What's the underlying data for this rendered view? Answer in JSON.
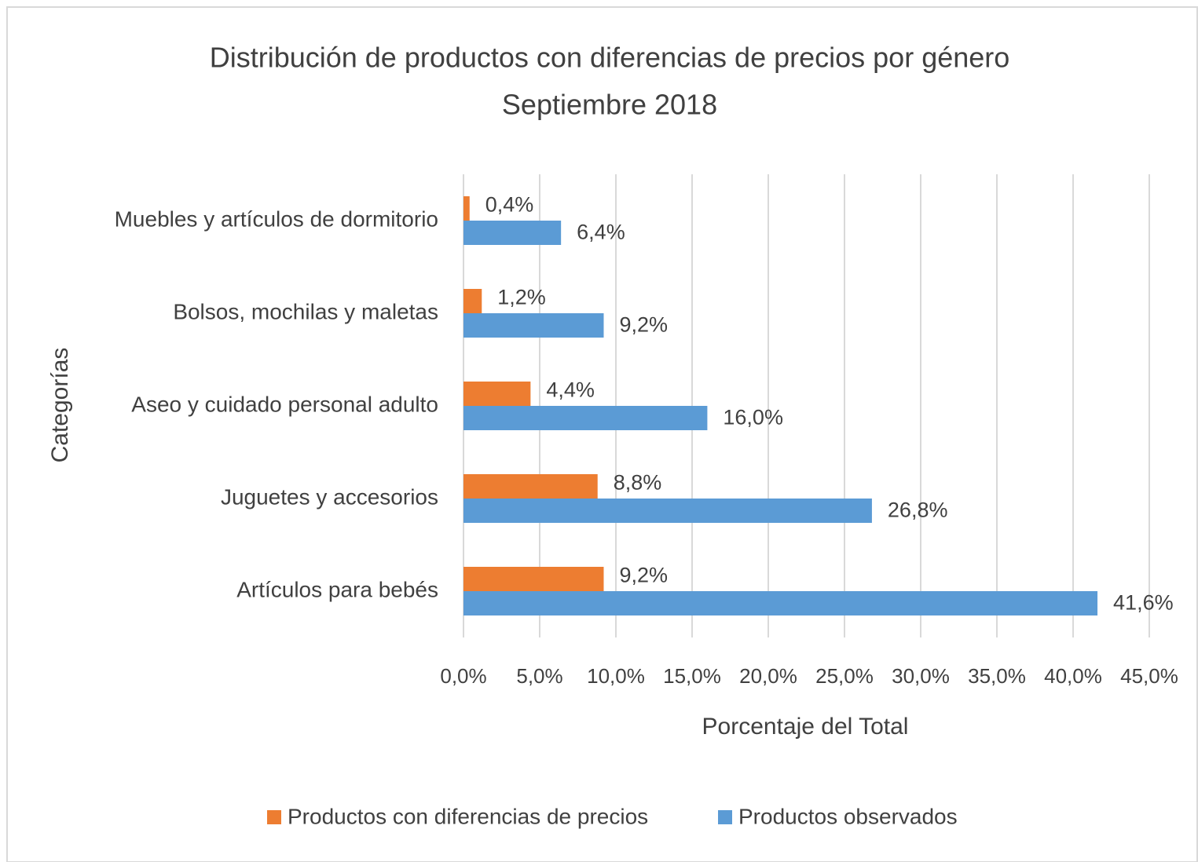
{
  "chart_data": {
    "type": "barh",
    "title": "Distribución de productos con diferencias de precios por género",
    "subtitle": "Septiembre 2018",
    "x_label": "Porcentaje del Total",
    "y_label": "Categorías",
    "categories": [
      "Muebles y artículos de dormitorio",
      "Bolsos, mochilas y maletas",
      "Aseo y cuidado personal adulto",
      "Juguetes y accesorios",
      "Artículos para bebés"
    ],
    "series": [
      {
        "name": "Productos con diferencias de precios",
        "color": "#ed7d31",
        "values": [
          0.4,
          1.2,
          4.4,
          8.8,
          9.2
        ],
        "value_labels": [
          "0,4%",
          "1,2%",
          "4,4%",
          "8,8%",
          "9,2%"
        ]
      },
      {
        "name": "Productos observados",
        "color": "#5b9bd5",
        "values": [
          6.4,
          9.2,
          16.0,
          26.8,
          41.6
        ],
        "value_labels": [
          "6,4%",
          "9,2%",
          "16,0%",
          "26,8%",
          "41,6%"
        ]
      }
    ],
    "xlim": [
      0,
      45
    ],
    "xticks": [
      {
        "value": 0,
        "label": "0,0%"
      },
      {
        "value": 5,
        "label": "5,0%"
      },
      {
        "value": 10,
        "label": "10,0%"
      },
      {
        "value": 15,
        "label": "15,0%"
      },
      {
        "value": 20,
        "label": "20,0%"
      },
      {
        "value": 25,
        "label": "25,0%"
      },
      {
        "value": 30,
        "label": "30,0%"
      },
      {
        "value": 35,
        "label": "35,0%"
      },
      {
        "value": 40,
        "label": "40,0%"
      },
      {
        "value": 45,
        "label": "45,0%"
      }
    ],
    "grid": true,
    "legend": "bottom"
  }
}
